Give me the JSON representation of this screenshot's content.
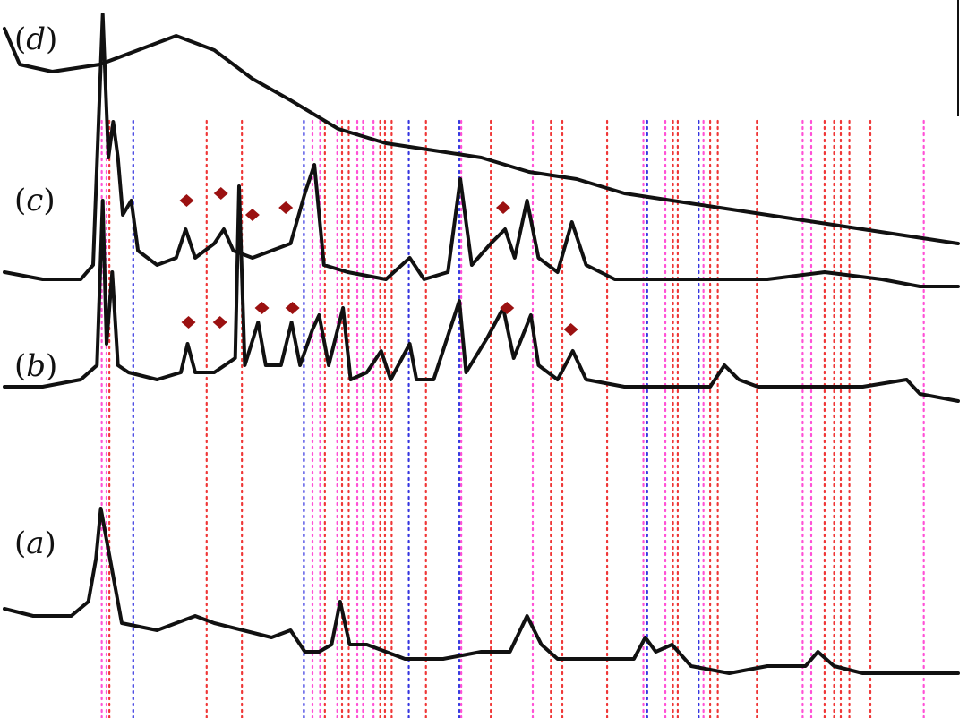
{
  "chart_data": {
    "type": "line",
    "title": "",
    "xlabel": "",
    "ylabel": "",
    "xlim": [
      0,
      100
    ],
    "grid": false,
    "legend": "none",
    "panels": [
      {
        "label": "d",
        "baseline": 0.93,
        "points": [
          [
            0.0,
            0.96
          ],
          [
            1.6,
            0.91
          ],
          [
            5,
            0.9
          ],
          [
            10,
            0.91
          ],
          [
            14,
            0.93
          ],
          [
            18,
            0.95
          ],
          [
            22,
            0.93
          ],
          [
            26,
            0.89
          ],
          [
            30,
            0.86
          ],
          [
            35,
            0.82
          ],
          [
            40,
            0.8
          ],
          [
            45,
            0.79
          ],
          [
            50,
            0.78
          ],
          [
            55,
            0.76
          ],
          [
            60,
            0.75
          ],
          [
            65,
            0.73
          ],
          [
            70,
            0.72
          ],
          [
            75,
            0.71
          ],
          [
            80,
            0.7
          ],
          [
            85,
            0.69
          ],
          [
            90,
            0.68
          ],
          [
            95,
            0.67
          ],
          [
            100,
            0.66
          ]
        ]
      },
      {
        "label": "c",
        "baseline": 0.62,
        "points": [
          [
            0.0,
            0.62
          ],
          [
            4,
            0.61
          ],
          [
            8,
            0.61
          ],
          [
            9.3,
            0.63
          ],
          [
            10.3,
            0.98
          ],
          [
            10.9,
            0.78
          ],
          [
            11.4,
            0.83
          ],
          [
            11.9,
            0.78
          ],
          [
            12.4,
            0.7
          ],
          [
            13.3,
            0.72
          ],
          [
            14,
            0.65
          ],
          [
            16,
            0.63
          ],
          [
            18,
            0.64
          ],
          [
            19,
            0.68
          ],
          [
            20,
            0.64
          ],
          [
            22,
            0.66
          ],
          [
            23,
            0.68
          ],
          [
            24,
            0.65
          ],
          [
            26,
            0.64
          ],
          [
            28,
            0.65
          ],
          [
            30,
            0.66
          ],
          [
            31.5,
            0.73
          ],
          [
            32.5,
            0.77
          ],
          [
            33.5,
            0.63
          ],
          [
            36,
            0.62
          ],
          [
            40,
            0.61
          ],
          [
            42.5,
            0.64
          ],
          [
            44,
            0.61
          ],
          [
            46.5,
            0.62
          ],
          [
            47.8,
            0.75
          ],
          [
            49,
            0.63
          ],
          [
            51,
            0.66
          ],
          [
            52.5,
            0.68
          ],
          [
            53.5,
            0.64
          ],
          [
            54.8,
            0.72
          ],
          [
            56,
            0.64
          ],
          [
            58,
            0.62
          ],
          [
            59.5,
            0.69
          ],
          [
            61,
            0.63
          ],
          [
            64,
            0.61
          ],
          [
            70,
            0.61
          ],
          [
            74,
            0.61
          ],
          [
            80,
            0.61
          ],
          [
            86,
            0.62
          ],
          [
            92,
            0.61
          ],
          [
            96,
            0.6
          ],
          [
            100,
            0.6
          ]
        ]
      },
      {
        "label": "b",
        "baseline": 0.45,
        "points": [
          [
            0.0,
            0.46
          ],
          [
            4,
            0.46
          ],
          [
            8,
            0.47
          ],
          [
            9.7,
            0.49
          ],
          [
            10.3,
            0.72
          ],
          [
            10.7,
            0.52
          ],
          [
            11.3,
            0.62
          ],
          [
            11.9,
            0.49
          ],
          [
            13,
            0.48
          ],
          [
            16,
            0.47
          ],
          [
            18.5,
            0.48
          ],
          [
            19.2,
            0.52
          ],
          [
            20,
            0.48
          ],
          [
            22,
            0.48
          ],
          [
            24.2,
            0.5
          ],
          [
            24.6,
            0.74
          ],
          [
            25.2,
            0.49
          ],
          [
            26.6,
            0.55
          ],
          [
            27.4,
            0.49
          ],
          [
            29,
            0.49
          ],
          [
            30.1,
            0.55
          ],
          [
            31,
            0.49
          ],
          [
            32.3,
            0.54
          ],
          [
            33,
            0.56
          ],
          [
            34,
            0.49
          ],
          [
            35.5,
            0.57
          ],
          [
            36.3,
            0.47
          ],
          [
            38,
            0.48
          ],
          [
            39.5,
            0.51
          ],
          [
            40.5,
            0.47
          ],
          [
            42.5,
            0.52
          ],
          [
            43.2,
            0.47
          ],
          [
            45,
            0.47
          ],
          [
            47.7,
            0.58
          ],
          [
            48.4,
            0.48
          ],
          [
            50.7,
            0.53
          ],
          [
            52.3,
            0.57
          ],
          [
            53.4,
            0.5
          ],
          [
            55.2,
            0.56
          ],
          [
            56,
            0.49
          ],
          [
            58,
            0.47
          ],
          [
            59.6,
            0.51
          ],
          [
            61,
            0.47
          ],
          [
            65,
            0.46
          ],
          [
            70,
            0.46
          ],
          [
            74,
            0.46
          ],
          [
            75.5,
            0.49
          ],
          [
            77,
            0.47
          ],
          [
            79,
            0.46
          ],
          [
            85,
            0.46
          ],
          [
            90,
            0.46
          ],
          [
            94.6,
            0.47
          ],
          [
            96,
            0.45
          ],
          [
            100,
            0.44
          ]
        ]
      },
      {
        "label": "a",
        "baseline": 0.12,
        "points": [
          [
            0.0,
            0.15
          ],
          [
            3,
            0.14
          ],
          [
            5,
            0.14
          ],
          [
            7,
            0.14
          ],
          [
            8.8,
            0.16
          ],
          [
            9.6,
            0.22
          ],
          [
            10.1,
            0.29
          ],
          [
            11.2,
            0.21
          ],
          [
            12.3,
            0.13
          ],
          [
            16,
            0.12
          ],
          [
            18,
            0.13
          ],
          [
            20,
            0.14
          ],
          [
            22,
            0.13
          ],
          [
            25,
            0.12
          ],
          [
            28,
            0.11
          ],
          [
            30,
            0.12
          ],
          [
            31.5,
            0.09
          ],
          [
            33,
            0.09
          ],
          [
            34.3,
            0.1
          ],
          [
            35.2,
            0.16
          ],
          [
            36.2,
            0.1
          ],
          [
            38,
            0.1
          ],
          [
            42,
            0.08
          ],
          [
            46,
            0.08
          ],
          [
            50,
            0.09
          ],
          [
            53,
            0.09
          ],
          [
            54.8,
            0.14
          ],
          [
            56.3,
            0.1
          ],
          [
            58,
            0.08
          ],
          [
            62,
            0.08
          ],
          [
            66,
            0.08
          ],
          [
            67.2,
            0.11
          ],
          [
            68.3,
            0.09
          ],
          [
            70,
            0.1
          ],
          [
            72,
            0.07
          ],
          [
            76,
            0.06
          ],
          [
            80,
            0.07
          ],
          [
            84,
            0.07
          ],
          [
            85.3,
            0.09
          ],
          [
            87,
            0.07
          ],
          [
            90,
            0.06
          ],
          [
            96,
            0.06
          ],
          [
            98,
            0.06
          ],
          [
            100,
            0.06
          ]
        ]
      }
    ],
    "annotations": {
      "marker": "diamond",
      "color": "#9b1111",
      "points": [
        {
          "panel": "c",
          "x": 19.1,
          "y": 0.72
        },
        {
          "panel": "c",
          "x": 22.7,
          "y": 0.73
        },
        {
          "panel": "c",
          "x": 26.0,
          "y": 0.7
        },
        {
          "panel": "c",
          "x": 29.5,
          "y": 0.71
        },
        {
          "panel": "c",
          "x": 52.3,
          "y": 0.71
        },
        {
          "panel": "b",
          "x": 19.3,
          "y": 0.55
        },
        {
          "panel": "b",
          "x": 22.6,
          "y": 0.55
        },
        {
          "panel": "b",
          "x": 27.0,
          "y": 0.57
        },
        {
          "panel": "b",
          "x": 30.2,
          "y": 0.57
        },
        {
          "panel": "b",
          "x": 52.7,
          "y": 0.57
        },
        {
          "panel": "b",
          "x": 59.4,
          "y": 0.54
        }
      ]
    },
    "reference_lines": [
      {
        "color": "#ff3fd2",
        "x": [
          10.2,
          10.7,
          32.3,
          33.1,
          34.9,
          37.0,
          37.6,
          38.7,
          47.9,
          55.4,
          67.0,
          69.3,
          73.3,
          83.7,
          84.6,
          96.4
        ]
      },
      {
        "color": "#ee2222",
        "x": [
          11.0,
          21.2,
          24.9,
          33.6,
          35.4,
          36.1,
          39.4,
          39.9,
          40.6,
          44.2,
          51.0,
          57.3,
          58.5,
          63.2,
          70.1,
          70.6,
          74.0,
          74.8,
          78.9,
          86.0,
          87.0,
          87.7,
          88.6,
          90.8
        ]
      },
      {
        "color": "#2222dd",
        "x": [
          13.5,
          31.4,
          42.4,
          47.7,
          67.4,
          72.8
        ]
      }
    ]
  }
}
